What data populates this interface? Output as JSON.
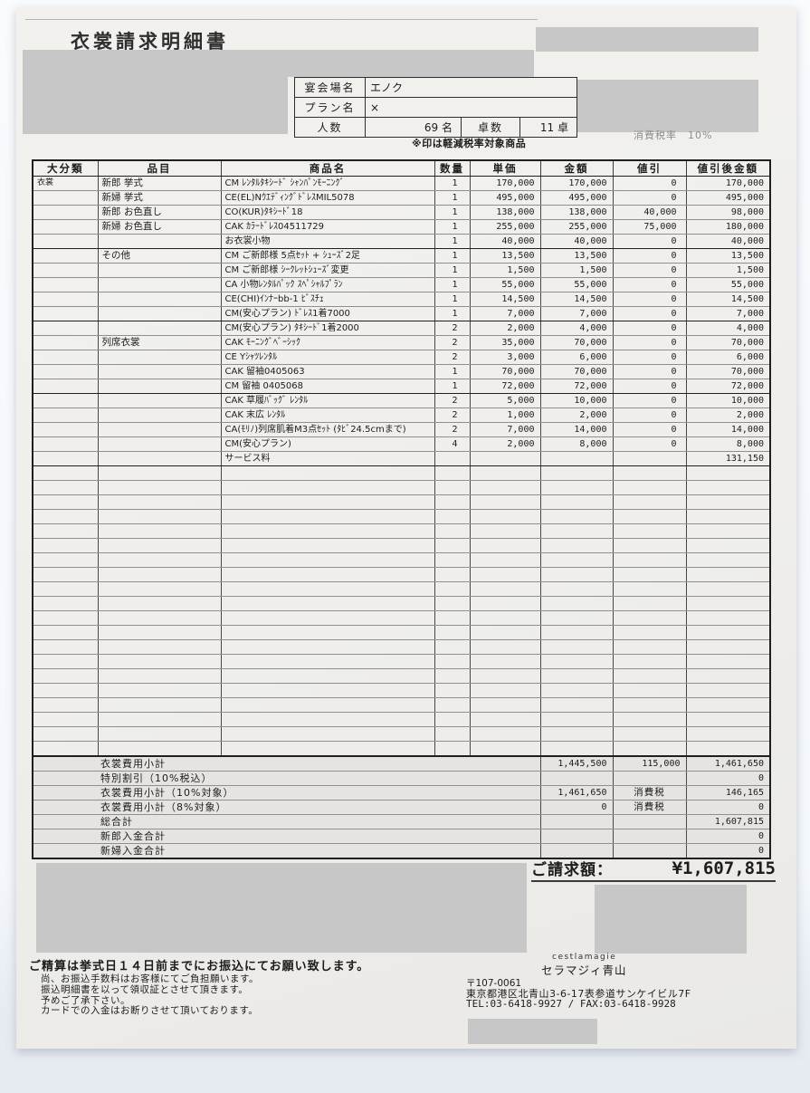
{
  "document": {
    "title": "衣裳請求明細書",
    "tax_rate_note": "消費税率　10%",
    "reduced_tax_note": "※印は軽減税率対象商品"
  },
  "info_table": {
    "venue_label": "宴会場名",
    "venue_value": "エノク",
    "plan_label": "プラン名",
    "plan_value": "×",
    "people_label": "人数",
    "people_value": "69 名",
    "tables_label": "卓数",
    "tables_value": "11 卓"
  },
  "items_table": {
    "headers": [
      "大分類",
      "品目",
      "商品名",
      "数量",
      "単価",
      "金額",
      "値引",
      "値引後金額"
    ],
    "rows": [
      {
        "category": "衣裳",
        "item": "新郎 挙式",
        "product": "CM ﾚﾝﾀﾙﾀｷｼｰﾄﾞ ｼｬﾝﾊﾟﾝﾓｰﾆﾝｸﾞ",
        "qty": "1",
        "unit": "170,000",
        "amount": "170,000",
        "discount": "0",
        "after": "170,000",
        "group_end": false
      },
      {
        "category": "",
        "item": "新婦 挙式",
        "product": "CE(EL)NｳｴﾃﾞｨﾝｸﾞﾄﾞﾚｽMIL5078",
        "qty": "1",
        "unit": "495,000",
        "amount": "495,000",
        "discount": "0",
        "after": "495,000",
        "group_end": false
      },
      {
        "category": "",
        "item": "新郎 お色直し",
        "product": "CO(KUR)ﾀｷｼｰﾄﾞ18",
        "qty": "1",
        "unit": "138,000",
        "amount": "138,000",
        "discount": "40,000",
        "after": "98,000",
        "group_end": false
      },
      {
        "category": "",
        "item": "新婦 お色直し",
        "product": "CAK ｶﾗｰﾄﾞﾚｽ04511729",
        "qty": "1",
        "unit": "255,000",
        "amount": "255,000",
        "discount": "75,000",
        "after": "180,000",
        "group_end": false
      },
      {
        "category": "",
        "item": "",
        "product": "お衣裳小物",
        "qty": "1",
        "unit": "40,000",
        "amount": "40,000",
        "discount": "0",
        "after": "40,000",
        "group_end": true
      },
      {
        "category": "",
        "item": "その他",
        "product": "CM ご新郎様 5点ｾｯﾄ + ｼｭｰｽﾞ2足",
        "qty": "1",
        "unit": "13,500",
        "amount": "13,500",
        "discount": "0",
        "after": "13,500",
        "group_end": false
      },
      {
        "category": "",
        "item": "",
        "product": "CM ご新郎様 ｼｰｸﾚｯﾄｼｭｰｽﾞ変更",
        "qty": "1",
        "unit": "1,500",
        "amount": "1,500",
        "discount": "0",
        "after": "1,500",
        "group_end": false
      },
      {
        "category": "",
        "item": "",
        "product": "CA 小物ﾚﾝﾀﾙﾊﾟｯｸ ｽﾍﾟｼｬﾙﾌﾟﾗﾝ",
        "qty": "1",
        "unit": "55,000",
        "amount": "55,000",
        "discount": "0",
        "after": "55,000",
        "group_end": false
      },
      {
        "category": "",
        "item": "",
        "product": "CE(CHI)ｲﾝﾅｰbb-1 ﾋﾞｽﾁｪ",
        "qty": "1",
        "unit": "14,500",
        "amount": "14,500",
        "discount": "0",
        "after": "14,500",
        "group_end": false
      },
      {
        "category": "",
        "item": "",
        "product": "CM(安心プラン) ﾄﾞﾚｽ1着7000",
        "qty": "1",
        "unit": "7,000",
        "amount": "7,000",
        "discount": "0",
        "after": "7,000",
        "group_end": true
      },
      {
        "category": "",
        "item": "",
        "product": "CM(安心プラン) ﾀｷｼｰﾄﾞ1着2000",
        "qty": "2",
        "unit": "2,000",
        "amount": "4,000",
        "discount": "0",
        "after": "4,000",
        "group_end": false
      },
      {
        "category": "",
        "item": "列席衣裳",
        "product": "CAK ﾓｰﾆﾝｸﾞﾍﾞｰｼｯｸ",
        "qty": "2",
        "unit": "35,000",
        "amount": "70,000",
        "discount": "0",
        "after": "70,000",
        "group_end": false
      },
      {
        "category": "",
        "item": "",
        "product": "CE Yｼｬﾂﾚﾝﾀﾙ",
        "qty": "2",
        "unit": "3,000",
        "amount": "6,000",
        "discount": "0",
        "after": "6,000",
        "group_end": false
      },
      {
        "category": "",
        "item": "",
        "product": "CAK 留袖0405063",
        "qty": "1",
        "unit": "70,000",
        "amount": "70,000",
        "discount": "0",
        "after": "70,000",
        "group_end": false
      },
      {
        "category": "",
        "item": "",
        "product": "CM 留袖 0405068",
        "qty": "1",
        "unit": "72,000",
        "amount": "72,000",
        "discount": "0",
        "after": "72,000",
        "group_end": true
      },
      {
        "category": "",
        "item": "",
        "product": "CAK 草履ﾊﾞｯｸﾞ ﾚﾝﾀﾙ",
        "qty": "2",
        "unit": "5,000",
        "amount": "10,000",
        "discount": "0",
        "after": "10,000",
        "group_end": false
      },
      {
        "category": "",
        "item": "",
        "product": "CAK 末広 ﾚﾝﾀﾙ",
        "qty": "2",
        "unit": "1,000",
        "amount": "2,000",
        "discount": "0",
        "after": "2,000",
        "group_end": false
      },
      {
        "category": "",
        "item": "",
        "product": "CA(ﾓﾘﾉ)列席肌着M3点ｾｯﾄ (ﾀﾋﾞ24.5cmまで)",
        "qty": "2",
        "unit": "7,000",
        "amount": "14,000",
        "discount": "0",
        "after": "14,000",
        "group_end": false
      },
      {
        "category": "",
        "item": "",
        "product": "CM(安心プラン)",
        "qty": "4",
        "unit": "2,000",
        "amount": "8,000",
        "discount": "0",
        "after": "8,000",
        "group_end": false
      },
      {
        "category": "",
        "item": "",
        "product": "サービス料",
        "qty": "",
        "unit": "",
        "amount": "",
        "discount": "",
        "after": "131,150",
        "group_end": true
      }
    ],
    "empty_row_count": 20,
    "totals": [
      {
        "label": "衣裳費用小計",
        "amount": "1,445,500",
        "mid": "115,000",
        "after": "1,461,650"
      },
      {
        "label": "特別割引（10%税込）",
        "amount": "",
        "mid": "",
        "after": "0"
      },
      {
        "label": "衣裳費用小計（10%対象）",
        "amount": "1,461,650",
        "mid": "消費税",
        "after": "146,165"
      },
      {
        "label": "衣裳費用小計（8%対象）",
        "amount": "0",
        "mid": "消費税",
        "after": "0"
      },
      {
        "label": "総合計",
        "amount": "",
        "mid": "",
        "after": "1,607,815"
      },
      {
        "label": "新郎入金合計",
        "amount": "",
        "mid": "",
        "after": "0"
      },
      {
        "label": "新婦入金合計",
        "amount": "",
        "mid": "",
        "after": "0"
      }
    ]
  },
  "billing": {
    "label": "ご請求額：",
    "amount": "¥1,607,815"
  },
  "company": {
    "latin": "cestlamagie",
    "name": "セラマジィ青山",
    "postal": "〒107-0061",
    "address": "東京都港区北青山3-6-17表参道サンケイビル7F",
    "tel_fax": "TEL:03-6418-9927 / FAX:03-6418-9928"
  },
  "footer": {
    "main": "ご精算は挙式日１４日前までにお振込にてお願い致します。",
    "notes": [
      "尚、お振込手数料はお客様にてご負担願います。",
      "振込明細書を以って領収証とさせて頂きます。",
      "予めご了承下さい。",
      "カードでの入金はお断りさせて頂いております。"
    ]
  },
  "colors": {
    "paper": "#f0efeb",
    "redaction": "#c7c7c7",
    "totals_row_bg": "#e5e4e0",
    "table_border": "#1f1f1f"
  }
}
